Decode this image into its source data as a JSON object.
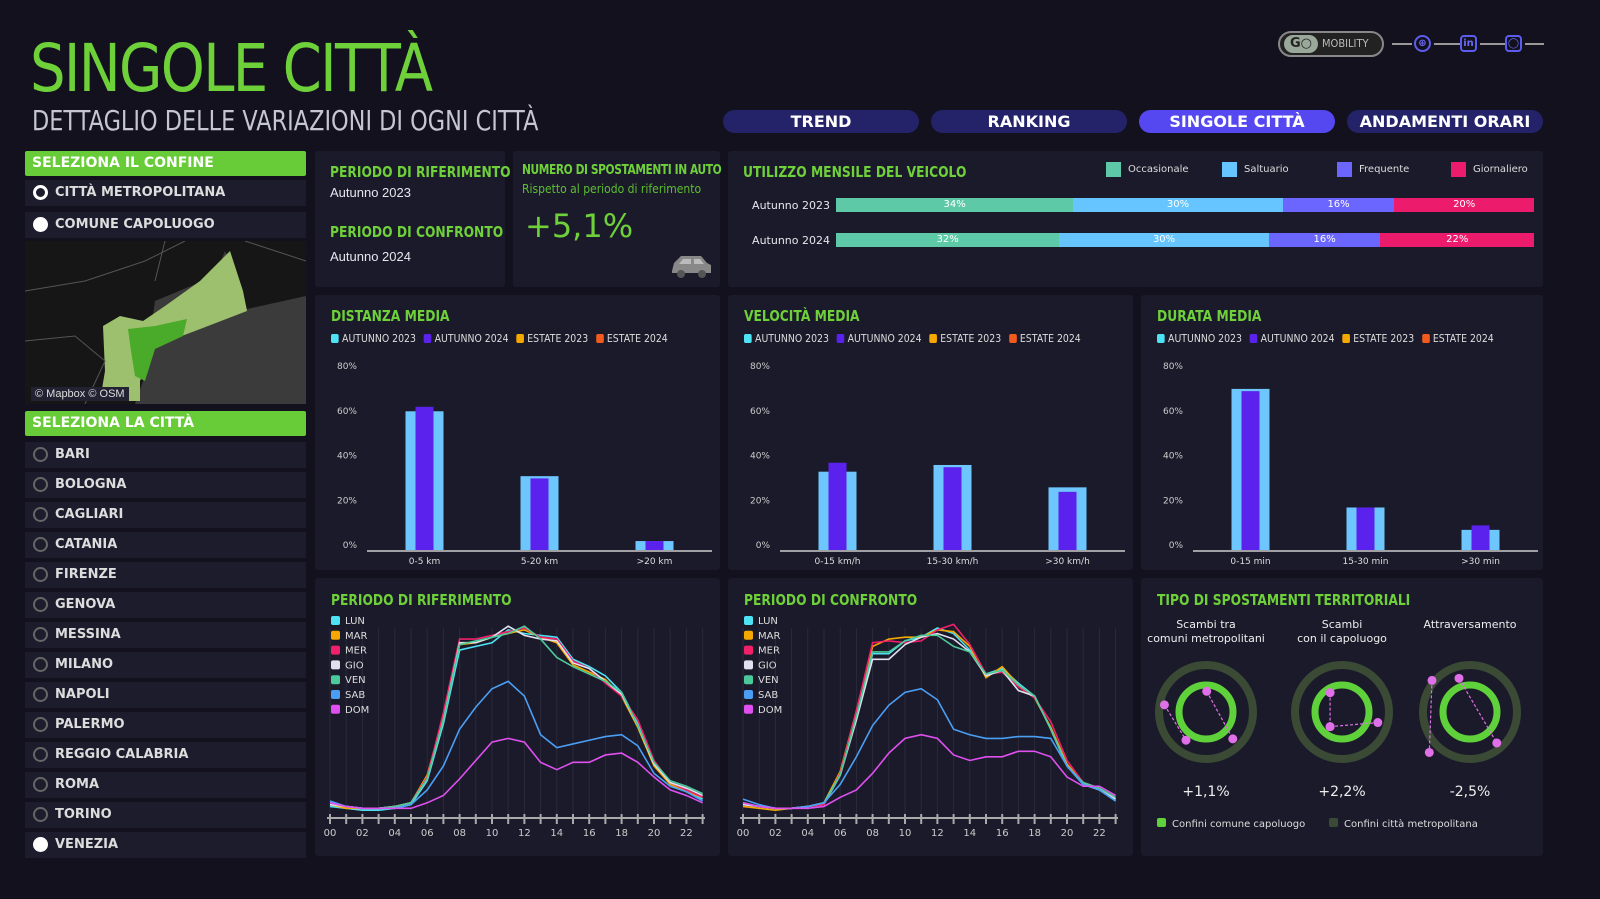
{
  "header": {
    "title": "SINGOLE CITTÀ",
    "subtitle": "DETTAGLIO DELLE VARIAZIONI DI OGNI CITTÀ"
  },
  "brand": {
    "logo_mark": "GO",
    "logo_text": "MOBILITY",
    "social": [
      "globe-icon",
      "linkedin-icon",
      "instagram-icon"
    ]
  },
  "tabs": [
    {
      "label": "TREND",
      "active": false
    },
    {
      "label": "RANKING",
      "active": false
    },
    {
      "label": "SINGOLE CITTÀ",
      "active": true
    },
    {
      "label": "ANDAMENTI ORARI",
      "active": false
    }
  ],
  "sidebar": {
    "boundary_header": "SELEZIONA IL CONFINE",
    "boundary_options": [
      {
        "label": "CITTÀ METROPOLITANA",
        "selected": false
      },
      {
        "label": "COMUNE CAPOLUOGO",
        "selected": true
      }
    ],
    "map_attribution": "© Mapbox © OSM",
    "city_header": "SELEZIONA LA CITTÀ",
    "cities": [
      "BARI",
      "BOLOGNA",
      "CAGLIARI",
      "CATANIA",
      "FIRENZE",
      "GENOVA",
      "MESSINA",
      "MILANO",
      "NAPOLI",
      "PALERMO",
      "REGGIO CALABRIA",
      "ROMA",
      "TORINO",
      "VENEZIA"
    ],
    "selected_city": "VENEZIA"
  },
  "periods": {
    "ref_title": "PERIODO DI RIFERIMENTO",
    "ref_value": "Autunno 2023",
    "cmp_title": "PERIODO DI CONFRONTO",
    "cmp_value": "Autunno 2024"
  },
  "kpi": {
    "title": "NUMERO DI SPOSTAMENTI IN AUTO",
    "subtitle": "Rispetto al periodo di riferimento",
    "value": "+5,1%",
    "icon": "car-icon"
  },
  "colors": {
    "accent": "#6fd13a",
    "occasionale": "#5ec9a6",
    "saltuario": "#66c4ff",
    "frequente": "#6b66ff",
    "giornaliero": "#ec1b6c",
    "autunno2023": "#4de3f5",
    "autunno2024": "#5a22ec",
    "estate2023": "#f5a800",
    "estate2024": "#f25a1e"
  },
  "chart_data": [
    {
      "id": "utilizzo",
      "type": "bar",
      "stacked": true,
      "orientation": "horizontal",
      "title": "UTILIZZO MENSILE DEL VEICOLO",
      "categories": [
        "Autunno 2023",
        "Autunno 2024"
      ],
      "series": [
        {
          "name": "Occasionale",
          "values": [
            34,
            32
          ],
          "labels": [
            "34%",
            "32%"
          ],
          "color": "#5ec9a6"
        },
        {
          "name": "Saltuario",
          "values": [
            30,
            30
          ],
          "labels": [
            "30%",
            "30%"
          ],
          "color": "#66c4ff"
        },
        {
          "name": "Frequente",
          "values": [
            16,
            16
          ],
          "labels": [
            "16%",
            "16%"
          ],
          "color": "#6b66ff"
        },
        {
          "name": "Giornaliero",
          "values": [
            20,
            22
          ],
          "labels": [
            "20%",
            "22%"
          ],
          "color": "#ec1b6c"
        }
      ]
    },
    {
      "id": "distanza",
      "type": "bar",
      "title": "DISTANZA MEDIA",
      "categories": [
        "0-5 km",
        "5-20 km",
        ">20 km"
      ],
      "yticks": [
        "0%",
        "20%",
        "40%",
        "60%",
        "80%"
      ],
      "ylim": [
        0,
        80
      ],
      "legend": [
        "AUTUNNO 2023",
        "AUTUNNO 2024",
        "ESTATE 2023",
        "ESTATE 2024"
      ],
      "series": [
        {
          "name": "AUTUNNO 2023",
          "values": [
            62,
            33,
            4
          ]
        },
        {
          "name": "AUTUNNO 2024",
          "values": [
            64,
            32,
            4
          ]
        }
      ]
    },
    {
      "id": "velocita",
      "type": "bar",
      "title": "VELOCITÀ MEDIA",
      "categories": [
        "0-15 km/h",
        "15-30 km/h",
        ">30 km/h"
      ],
      "yticks": [
        "0%",
        "20%",
        "40%",
        "60%",
        "80%"
      ],
      "ylim": [
        0,
        80
      ],
      "legend": [
        "AUTUNNO 2023",
        "AUTUNNO 2024",
        "ESTATE 2023",
        "ESTATE 2024"
      ],
      "series": [
        {
          "name": "AUTUNNO 2023",
          "values": [
            35,
            38,
            28
          ]
        },
        {
          "name": "AUTUNNO 2024",
          "values": [
            39,
            37,
            26
          ]
        }
      ]
    },
    {
      "id": "durata",
      "type": "bar",
      "title": "DURATA MEDIA",
      "categories": [
        "0-15 min",
        "15-30 min",
        ">30 min"
      ],
      "yticks": [
        "0%",
        "20%",
        "40%",
        "60%",
        "80%"
      ],
      "ylim": [
        0,
        80
      ],
      "legend": [
        "AUTUNNO 2023",
        "AUTUNNO 2024",
        "ESTATE 2023",
        "ESTATE 2024"
      ],
      "series": [
        {
          "name": "AUTUNNO 2023",
          "values": [
            72,
            19,
            9
          ]
        },
        {
          "name": "AUTUNNO 2024",
          "values": [
            71,
            19,
            11
          ]
        }
      ]
    },
    {
      "id": "riferimento",
      "type": "line",
      "title": "PERIODO DI RIFERIMENTO",
      "xticks": [
        "00",
        "02",
        "04",
        "06",
        "08",
        "10",
        "12",
        "14",
        "16",
        "18",
        "20",
        "22"
      ],
      "x": [
        0,
        1,
        2,
        3,
        4,
        5,
        6,
        7,
        8,
        9,
        10,
        11,
        12,
        13,
        14,
        15,
        16,
        17,
        18,
        19,
        20,
        21,
        22,
        23
      ],
      "series": [
        {
          "name": "LUN",
          "color": "#4de3f5",
          "values": [
            3,
            2,
            1,
            1,
            2,
            4,
            17,
            48,
            88,
            90,
            92,
            99,
            97,
            96,
            95,
            83,
            79,
            74,
            65,
            48,
            27,
            16,
            12,
            7
          ]
        },
        {
          "name": "MAR",
          "color": "#f5a800",
          "values": [
            4,
            2,
            2,
            2,
            3,
            5,
            20,
            52,
            91,
            92,
            95,
            97,
            99,
            95,
            92,
            80,
            76,
            72,
            63,
            46,
            25,
            15,
            11,
            8
          ]
        },
        {
          "name": "MER",
          "color": "#f0206a",
          "values": [
            5,
            3,
            2,
            2,
            3,
            5,
            19,
            54,
            94,
            94,
            96,
            98,
            100,
            95,
            94,
            82,
            78,
            70,
            63,
            50,
            28,
            16,
            12,
            8
          ]
        },
        {
          "name": "GIO",
          "color": "#e0e0f0",
          "values": [
            4,
            3,
            2,
            2,
            3,
            5,
            18,
            50,
            92,
            92,
            95,
            101,
            96,
            94,
            93,
            81,
            78,
            71,
            64,
            47,
            26,
            16,
            13,
            9
          ]
        },
        {
          "name": "VEN",
          "color": "#4cc99a",
          "values": [
            5,
            3,
            2,
            2,
            3,
            5,
            18,
            50,
            91,
            93,
            95,
            97,
            101,
            94,
            84,
            79,
            75,
            71,
            65,
            47,
            27,
            17,
            14,
            10
          ]
        },
        {
          "name": "SAB",
          "color": "#4a9ff5",
          "values": [
            6,
            3,
            2,
            2,
            2,
            4,
            12,
            25,
            45,
            57,
            67,
            71,
            63,
            42,
            35,
            37,
            39,
            41,
            42,
            36,
            21,
            14,
            11,
            6
          ]
        },
        {
          "name": "DOM",
          "color": "#e050f0",
          "values": [
            5,
            3,
            2,
            2,
            2,
            2,
            5,
            9,
            18,
            28,
            38,
            40,
            38,
            27,
            23,
            27,
            27,
            31,
            32,
            27,
            19,
            12,
            9,
            5
          ]
        }
      ]
    },
    {
      "id": "confronto",
      "type": "line",
      "title": "PERIODO DI CONFRONTO",
      "xticks": [
        "00",
        "02",
        "04",
        "06",
        "08",
        "10",
        "12",
        "14",
        "16",
        "18",
        "20",
        "22"
      ],
      "x": [
        0,
        1,
        2,
        3,
        4,
        5,
        6,
        7,
        8,
        9,
        10,
        11,
        12,
        13,
        14,
        15,
        16,
        17,
        18,
        19,
        20,
        21,
        22,
        23
      ],
      "series": [
        {
          "name": "LUN",
          "color": "#4de3f5",
          "values": [
            5,
            3,
            2,
            2,
            3,
            4,
            20,
            52,
            86,
            86,
            93,
            95,
            100,
            97,
            88,
            75,
            78,
            70,
            63,
            45,
            25,
            15,
            12,
            6
          ]
        },
        {
          "name": "MAR",
          "color": "#f5a800",
          "values": [
            3,
            2,
            1,
            2,
            3,
            5,
            22,
            55,
            90,
            94,
            95,
            95,
            99,
            98,
            90,
            73,
            79,
            69,
            62,
            46,
            26,
            16,
            12,
            7
          ]
        },
        {
          "name": "MER",
          "color": "#f0206a",
          "values": [
            4,
            3,
            2,
            2,
            3,
            4,
            21,
            55,
            92,
            93,
            92,
            93,
            99,
            102,
            91,
            75,
            76,
            68,
            62,
            49,
            28,
            16,
            13,
            7
          ]
        },
        {
          "name": "GIO",
          "color": "#e0e0f0",
          "values": [
            4,
            3,
            2,
            2,
            3,
            5,
            20,
            50,
            83,
            83,
            91,
            95,
            97,
            94,
            87,
            74,
            77,
            66,
            63,
            45,
            25,
            15,
            12,
            7
          ]
        },
        {
          "name": "VEN",
          "color": "#4cc99a",
          "values": [
            5,
            3,
            2,
            2,
            3,
            5,
            20,
            52,
            87,
            87,
            93,
            96,
            96,
            90,
            87,
            75,
            77,
            69,
            63,
            45,
            25,
            16,
            13,
            8
          ]
        },
        {
          "name": "SAB",
          "color": "#4a9ff5",
          "values": [
            7,
            4,
            2,
            2,
            3,
            5,
            15,
            30,
            47,
            58,
            65,
            67,
            61,
            45,
            42,
            40,
            40,
            41,
            41,
            40,
            25,
            15,
            12,
            6
          ]
        },
        {
          "name": "DOM",
          "color": "#e050f0",
          "values": [
            5,
            3,
            2,
            2,
            2,
            3,
            8,
            12,
            21,
            32,
            40,
            42,
            40,
            31,
            28,
            30,
            30,
            33,
            33,
            30,
            19,
            14,
            14,
            9
          ]
        }
      ]
    }
  ],
  "territorial": {
    "title": "TIPO DI SPOSTAMENTI TERRITORIALI",
    "items": [
      {
        "label_1": "Scambi tra",
        "label_2": "comuni metropolitani",
        "value": "+1,1%"
      },
      {
        "label_1": "Scambi",
        "label_2": "con il capoluogo",
        "value": "+2,2%"
      },
      {
        "label_1": "Attraversamento",
        "label_2": "",
        "value": "-2,5%"
      }
    ],
    "legend": [
      {
        "label": "Confini comune capoluogo",
        "color": "#5fd13a"
      },
      {
        "label": "Confini città metropolitana",
        "color": "#3a4a35"
      }
    ]
  }
}
